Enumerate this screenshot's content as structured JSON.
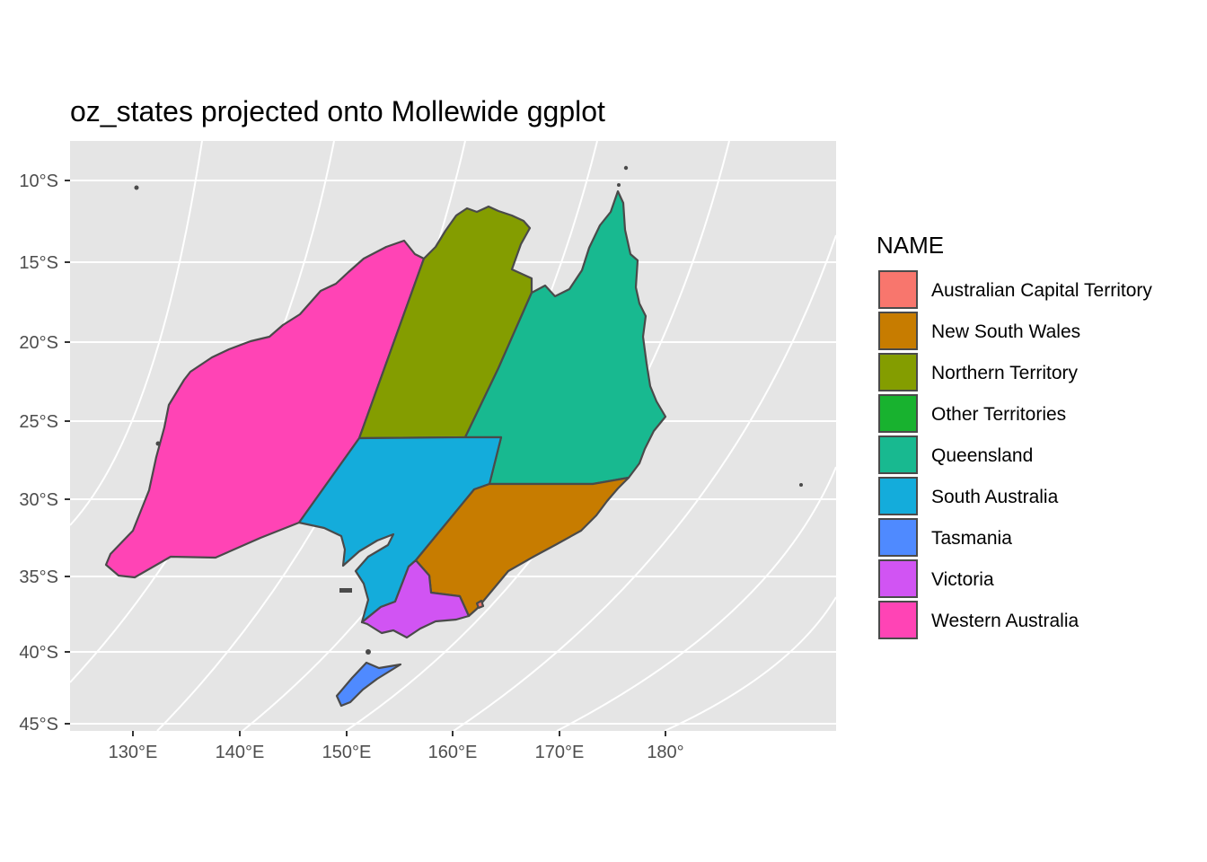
{
  "title": "oz_states projected onto Mollewide ggplot",
  "panel_background": "#e5e5e5",
  "outline_color": "#4a4a4a",
  "y_axis": {
    "ticks": [
      {
        "label": "10°S",
        "lat": -10
      },
      {
        "label": "15°S",
        "lat": -15
      },
      {
        "label": "20°S",
        "lat": -20
      },
      {
        "label": "25°S",
        "lat": -25
      },
      {
        "label": "30°S",
        "lat": -30
      },
      {
        "label": "35°S",
        "lat": -35
      },
      {
        "label": "40°S",
        "lat": -40
      },
      {
        "label": "45°S",
        "lat": -45
      }
    ]
  },
  "x_axis": {
    "ticks": [
      {
        "label": "130°E",
        "lon": 130
      },
      {
        "label": "140°E",
        "lon": 140
      },
      {
        "label": "150°E",
        "lon": 150
      },
      {
        "label": "160°E",
        "lon": 160
      },
      {
        "label": "170°E",
        "lon": 170
      },
      {
        "label": "180°",
        "lon": 180
      }
    ]
  },
  "legend": {
    "title": "NAME",
    "items": [
      {
        "label": "Australian Capital Territory",
        "color": "#F8766D"
      },
      {
        "label": "New South Wales",
        "color": "#C77C00"
      },
      {
        "label": "Northern Territory",
        "color": "#849D00"
      },
      {
        "label": "Other Territories",
        "color": "#18B22F"
      },
      {
        "label": "Queensland",
        "color": "#18B990"
      },
      {
        "label": "South Australia",
        "color": "#14ACDB"
      },
      {
        "label": "Tasmania",
        "color": "#4F8AFF"
      },
      {
        "label": "Victoria",
        "color": "#D154F3"
      },
      {
        "label": "Western Australia",
        "color": "#FF44B5"
      }
    ]
  },
  "regions": [
    {
      "name": "Western Australia",
      "color": "#FF44B5"
    },
    {
      "name": "Northern Territory",
      "color": "#849D00"
    },
    {
      "name": "Queensland",
      "color": "#18B990"
    },
    {
      "name": "South Australia",
      "color": "#14ACDB"
    },
    {
      "name": "New South Wales",
      "color": "#C77C00"
    },
    {
      "name": "Victoria",
      "color": "#D154F3"
    },
    {
      "name": "Tasmania",
      "color": "#4F8AFF"
    },
    {
      "name": "Australian Capital Territory",
      "color": "#F8766D"
    }
  ]
}
